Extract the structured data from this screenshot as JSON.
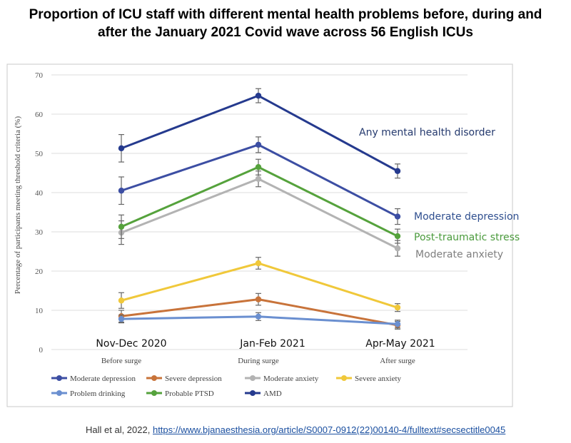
{
  "title": {
    "line1": "Proportion of ICU staff with different mental health problems before, during and",
    "line2": "after the January 2021 Covid wave across 56 English ICUs"
  },
  "citation": {
    "text": "Hall et al, 2022,",
    "link": "https://www.bjanaesthesia.org/article/S0007-0912(22)00140-4/fulltext#secsectitle0045"
  },
  "chart_data": {
    "type": "line",
    "ylabel": "Percentage of participants meeting threshold criteria (%)",
    "ylim": [
      0,
      70
    ],
    "yticks": [
      0,
      10,
      20,
      30,
      40,
      50,
      60,
      70
    ],
    "categories": [
      "Before surge",
      "During surge",
      "After surge"
    ],
    "period_labels": [
      "Nov-Dec 2020",
      "Jan-Feb 2021",
      "Apr-May 2021"
    ],
    "grid": true,
    "legend_position": "bottom",
    "series": [
      {
        "name": "Moderate depression",
        "color": "#3c4ea3",
        "values": [
          40.5,
          52.2,
          33.9
        ],
        "err": [
          3.5,
          2.0,
          2.0
        ]
      },
      {
        "name": "Severe depression",
        "color": "#c8733a",
        "values": [
          8.5,
          12.8,
          6.2
        ],
        "err": [
          1.5,
          1.5,
          1.0
        ]
      },
      {
        "name": "Moderate anxiety",
        "color": "#b3b3b3",
        "values": [
          29.8,
          43.5,
          25.8
        ],
        "err": [
          3.0,
          2.0,
          2.0
        ]
      },
      {
        "name": "Severe anxiety",
        "color": "#f0c83a",
        "values": [
          12.5,
          22.0,
          10.7
        ],
        "err": [
          2.0,
          1.5,
          1.0
        ]
      },
      {
        "name": "Problem drinking",
        "color": "#6a8fd0",
        "values": [
          7.8,
          8.4,
          6.5
        ],
        "err": [
          1.0,
          1.0,
          1.0
        ]
      },
      {
        "name": "Probable PTSD",
        "color": "#55a23c",
        "values": [
          31.3,
          46.5,
          28.9
        ],
        "err": [
          3.0,
          2.0,
          1.8
        ]
      },
      {
        "name": "AMD",
        "color": "#253a8e",
        "values": [
          51.3,
          64.7,
          45.5
        ],
        "err": [
          3.5,
          1.8,
          1.8
        ]
      }
    ],
    "annotations": [
      {
        "text": "Any mental health disorder",
        "series": "AMD",
        "color": "#253a6e"
      },
      {
        "text": "Moderate depression",
        "series": "Moderate depression",
        "color": "#2f4f8f"
      },
      {
        "text": "Post-traumatic stress",
        "series": "Probable PTSD",
        "color": "#4a9a3c"
      },
      {
        "text": "Moderate anxiety",
        "series": "Moderate anxiety",
        "color": "#7f7f7f"
      }
    ]
  }
}
